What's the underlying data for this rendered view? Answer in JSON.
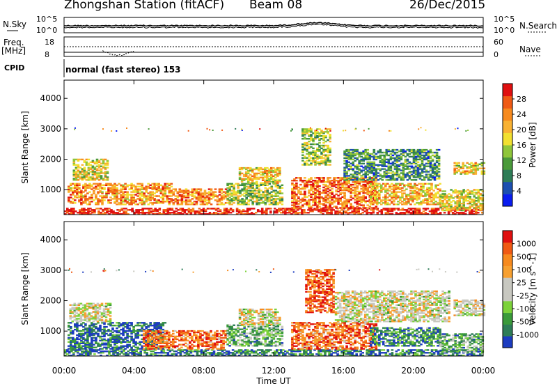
{
  "header": {
    "station": "Zhongshan Station (fitACF)",
    "beam": "Beam 08",
    "date": "26/Dec/2015"
  },
  "status_panels": {
    "nsky_label": "N.Sky",
    "nsearch_label": "N.Search",
    "freq_label_top": "Freq.",
    "freq_label_bottom": "[MHz]",
    "nave_label": "Nave",
    "cpid_label": "CPID",
    "cpid_value": "normal (fast stereo) 153",
    "noise_ticks": [
      "10^5",
      "10^0"
    ],
    "freq_ticks": [
      "18",
      "8"
    ],
    "nave_ticks": [
      "60",
      "0"
    ]
  },
  "chart_data": [
    {
      "type": "heatmap",
      "panel": "power",
      "ylabel": "Slant Range [km]",
      "xlabel": "",
      "xlim": [
        "00:00",
        "24:00"
      ],
      "ylim": [
        180,
        4600
      ],
      "yticks": [
        1000,
        2000,
        3000,
        4000
      ],
      "xticks": [
        "00:00",
        "04:00",
        "08:00",
        "12:00",
        "16:00",
        "20:00",
        "00:00"
      ],
      "colorbar": {
        "label": "Power [dB]",
        "ticks": [
          "4",
          "8",
          "12",
          "16",
          "20",
          "24",
          "28"
        ],
        "colors": [
          "#0a1cf0",
          "#1c4fb0",
          "#2e7d57",
          "#4a9a3a",
          "#8fc63a",
          "#f2e030",
          "#f9b233",
          "#f78a1e",
          "#f05a14",
          "#e01010"
        ]
      },
      "regions": [
        {
          "t": [
            0.0,
            24.0
          ],
          "r": [
            180,
            380
          ],
          "level": 0.95
        },
        {
          "t": [
            0.2,
            6.2
          ],
          "r": [
            500,
            1200
          ],
          "level": 0.7
        },
        {
          "t": [
            6.2,
            9.2
          ],
          "r": [
            500,
            1000
          ],
          "level": 0.75
        },
        {
          "t": [
            9.3,
            12.5
          ],
          "r": [
            500,
            1200
          ],
          "level": 0.45
        },
        {
          "t": [
            0.5,
            2.5
          ],
          "r": [
            1300,
            2000
          ],
          "level": 0.55
        },
        {
          "t": [
            10.0,
            12.3
          ],
          "r": [
            1200,
            1700
          ],
          "level": 0.6
        },
        {
          "t": [
            13.0,
            17.8
          ],
          "r": [
            380,
            1400
          ],
          "level": 0.8
        },
        {
          "t": [
            13.6,
            15.2
          ],
          "r": [
            1800,
            3000
          ],
          "level": 0.45
        },
        {
          "t": [
            17.5,
            21.5
          ],
          "r": [
            500,
            1200
          ],
          "level": 0.65
        },
        {
          "t": [
            16.0,
            21.5
          ],
          "r": [
            1300,
            2300
          ],
          "level": 0.3
        },
        {
          "t": [
            21.5,
            24.0
          ],
          "r": [
            300,
            1000
          ],
          "level": 0.55
        },
        {
          "t": [
            22.3,
            24.0
          ],
          "r": [
            1500,
            1900
          ],
          "level": 0.6
        }
      ]
    },
    {
      "type": "heatmap",
      "panel": "velocity",
      "ylabel": "Slant Range [km]",
      "xlabel": "Time UT",
      "xlim": [
        "00:00",
        "24:00"
      ],
      "ylim": [
        180,
        4600
      ],
      "yticks": [
        1000,
        2000,
        3000,
        4000
      ],
      "xticks": [
        "00:00",
        "04:00",
        "08:00",
        "12:00",
        "16:00",
        "20:00",
        "00:00"
      ],
      "colorbar": {
        "label": "Velocity [m s^-1]",
        "ticks": [
          "1000",
          "500",
          "100",
          "25",
          "-25",
          "-100",
          "-500",
          "-1000"
        ],
        "colors": [
          "#1c3cc0",
          "#2e7d57",
          "#3a9a3a",
          "#7cd23a",
          "#c8c8c0",
          "#c8c8c0",
          "#f7a030",
          "#f78a1e",
          "#f05a14",
          "#e01010"
        ]
      },
      "regions": [
        {
          "t": [
            0.0,
            24.0
          ],
          "r": [
            180,
            380
          ],
          "level": 0.15
        },
        {
          "t": [
            0.2,
            5.8
          ],
          "r": [
            400,
            1300
          ],
          "level": 0.1
        },
        {
          "t": [
            4.5,
            9.2
          ],
          "r": [
            400,
            1000
          ],
          "level": 0.8
        },
        {
          "t": [
            9.3,
            12.5
          ],
          "r": [
            500,
            1200
          ],
          "level": 0.3
        },
        {
          "t": [
            0.3,
            2.6
          ],
          "r": [
            1300,
            1900
          ],
          "level": 0.5
        },
        {
          "t": [
            10.0,
            12.3
          ],
          "r": [
            1200,
            1700
          ],
          "level": 0.5
        },
        {
          "t": [
            13.0,
            17.8
          ],
          "r": [
            400,
            1300
          ],
          "level": 0.8
        },
        {
          "t": [
            13.8,
            15.4
          ],
          "r": [
            1600,
            3000
          ],
          "level": 0.85
        },
        {
          "t": [
            17.5,
            21.5
          ],
          "r": [
            500,
            1100
          ],
          "level": 0.2
        },
        {
          "t": [
            15.5,
            22.0
          ],
          "r": [
            1300,
            2300
          ],
          "level": 0.5
        },
        {
          "t": [
            21.5,
            24.0
          ],
          "r": [
            300,
            900
          ],
          "level": 0.3
        },
        {
          "t": [
            22.3,
            24.0
          ],
          "r": [
            1500,
            2000
          ],
          "level": 0.5
        }
      ]
    }
  ]
}
